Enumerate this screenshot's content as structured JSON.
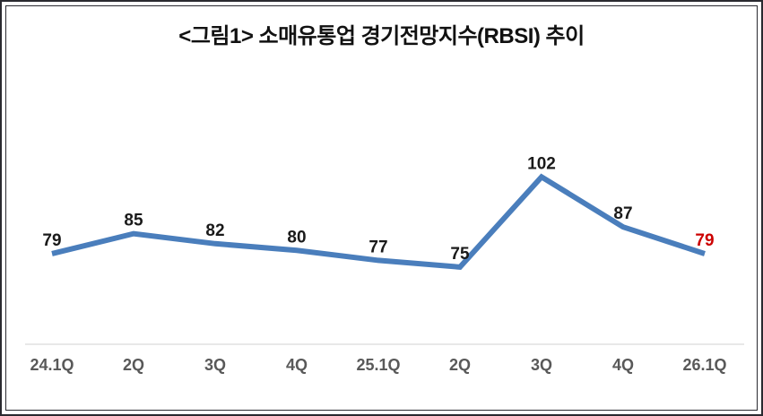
{
  "title": "<그림1> 소매유통업 경기전망지수(RBSI) 추이",
  "chart_data": {
    "type": "line",
    "title": "<그림1> 소매유통업 경기전망지수(RBSI) 추이",
    "categories": [
      "24.1Q",
      "2Q",
      "3Q",
      "4Q",
      "25.1Q",
      "2Q",
      "3Q",
      "4Q",
      "26.1Q"
    ],
    "values": [
      79,
      85,
      82,
      80,
      77,
      75,
      102,
      87,
      79
    ],
    "xlabel": "",
    "ylabel": "",
    "ylim": [
      50,
      130
    ],
    "grid": false,
    "legend": false,
    "colors": {
      "line": "#4a7ebc",
      "data_label": "#1a1a1a",
      "last_data_label": "#cc0000",
      "axis_line": "#e8e8e8",
      "tick_label": "#595959",
      "frame_border": "#2a2a30"
    }
  }
}
